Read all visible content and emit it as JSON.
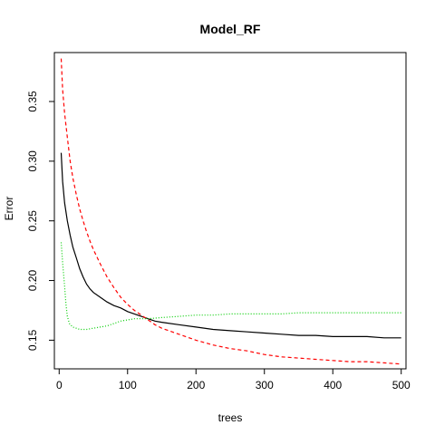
{
  "chart_data": {
    "type": "line",
    "title": "Model_RF",
    "xlabel": "trees",
    "ylabel": "Error",
    "xlim": [
      -7,
      507
    ],
    "ylim": [
      0.126,
      0.391
    ],
    "xticks": [
      0,
      100,
      200,
      300,
      400,
      500
    ],
    "xtick_labels": [
      "0",
      "100",
      "200",
      "300",
      "400",
      "500"
    ],
    "yticks": [
      0.15,
      0.2,
      0.25,
      0.3,
      0.35
    ],
    "ytick_labels": [
      "0.15",
      "0.20",
      "0.25",
      "0.30",
      "0.35"
    ],
    "grid": false,
    "legend": "none",
    "series": [
      {
        "color": "#000000",
        "dash": "solid",
        "points": [
          [
            3,
            0.307
          ],
          [
            5,
            0.283
          ],
          [
            8,
            0.265
          ],
          [
            12,
            0.25
          ],
          [
            16,
            0.238
          ],
          [
            20,
            0.228
          ],
          [
            25,
            0.219
          ],
          [
            30,
            0.21
          ],
          [
            35,
            0.203
          ],
          [
            40,
            0.197
          ],
          [
            45,
            0.193
          ],
          [
            50,
            0.19
          ],
          [
            60,
            0.186
          ],
          [
            70,
            0.182
          ],
          [
            80,
            0.179
          ],
          [
            90,
            0.177
          ],
          [
            100,
            0.174
          ],
          [
            110,
            0.172
          ],
          [
            120,
            0.17
          ],
          [
            130,
            0.168
          ],
          [
            140,
            0.166
          ],
          [
            150,
            0.165
          ],
          [
            175,
            0.163
          ],
          [
            200,
            0.161
          ],
          [
            225,
            0.159
          ],
          [
            250,
            0.158
          ],
          [
            275,
            0.157
          ],
          [
            300,
            0.156
          ],
          [
            325,
            0.155
          ],
          [
            350,
            0.154
          ],
          [
            375,
            0.154
          ],
          [
            400,
            0.153
          ],
          [
            425,
            0.153
          ],
          [
            450,
            0.153
          ],
          [
            475,
            0.152
          ],
          [
            500,
            0.152
          ]
        ]
      },
      {
        "color": "#ff0000",
        "dash": "dashed",
        "points": [
          [
            3,
            0.386
          ],
          [
            5,
            0.36
          ],
          [
            8,
            0.34
          ],
          [
            12,
            0.32
          ],
          [
            16,
            0.3
          ],
          [
            20,
            0.286
          ],
          [
            25,
            0.272
          ],
          [
            30,
            0.26
          ],
          [
            35,
            0.25
          ],
          [
            40,
            0.241
          ],
          [
            45,
            0.233
          ],
          [
            50,
            0.226
          ],
          [
            60,
            0.214
          ],
          [
            70,
            0.203
          ],
          [
            80,
            0.194
          ],
          [
            90,
            0.186
          ],
          [
            100,
            0.18
          ],
          [
            110,
            0.175
          ],
          [
            120,
            0.171
          ],
          [
            130,
            0.167
          ],
          [
            140,
            0.163
          ],
          [
            150,
            0.16
          ],
          [
            175,
            0.155
          ],
          [
            200,
            0.15
          ],
          [
            225,
            0.146
          ],
          [
            250,
            0.143
          ],
          [
            275,
            0.141
          ],
          [
            300,
            0.138
          ],
          [
            325,
            0.136
          ],
          [
            350,
            0.135
          ],
          [
            375,
            0.134
          ],
          [
            400,
            0.133
          ],
          [
            425,
            0.132
          ],
          [
            450,
            0.132
          ],
          [
            475,
            0.131
          ],
          [
            500,
            0.13
          ]
        ]
      },
      {
        "color": "#00cd00",
        "dash": "dotted",
        "points": [
          [
            3,
            0.232
          ],
          [
            5,
            0.215
          ],
          [
            8,
            0.195
          ],
          [
            10,
            0.18
          ],
          [
            12,
            0.17
          ],
          [
            15,
            0.164
          ],
          [
            20,
            0.161
          ],
          [
            30,
            0.159
          ],
          [
            40,
            0.159
          ],
          [
            50,
            0.16
          ],
          [
            60,
            0.161
          ],
          [
            70,
            0.162
          ],
          [
            80,
            0.164
          ],
          [
            90,
            0.166
          ],
          [
            100,
            0.167
          ],
          [
            110,
            0.168
          ],
          [
            120,
            0.168
          ],
          [
            130,
            0.168
          ],
          [
            150,
            0.169
          ],
          [
            175,
            0.17
          ],
          [
            200,
            0.171
          ],
          [
            225,
            0.171
          ],
          [
            250,
            0.172
          ],
          [
            275,
            0.172
          ],
          [
            300,
            0.172
          ],
          [
            325,
            0.172
          ],
          [
            350,
            0.173
          ],
          [
            375,
            0.173
          ],
          [
            400,
            0.173
          ],
          [
            425,
            0.173
          ],
          [
            450,
            0.173
          ],
          [
            475,
            0.173
          ],
          [
            500,
            0.173
          ]
        ]
      }
    ]
  }
}
